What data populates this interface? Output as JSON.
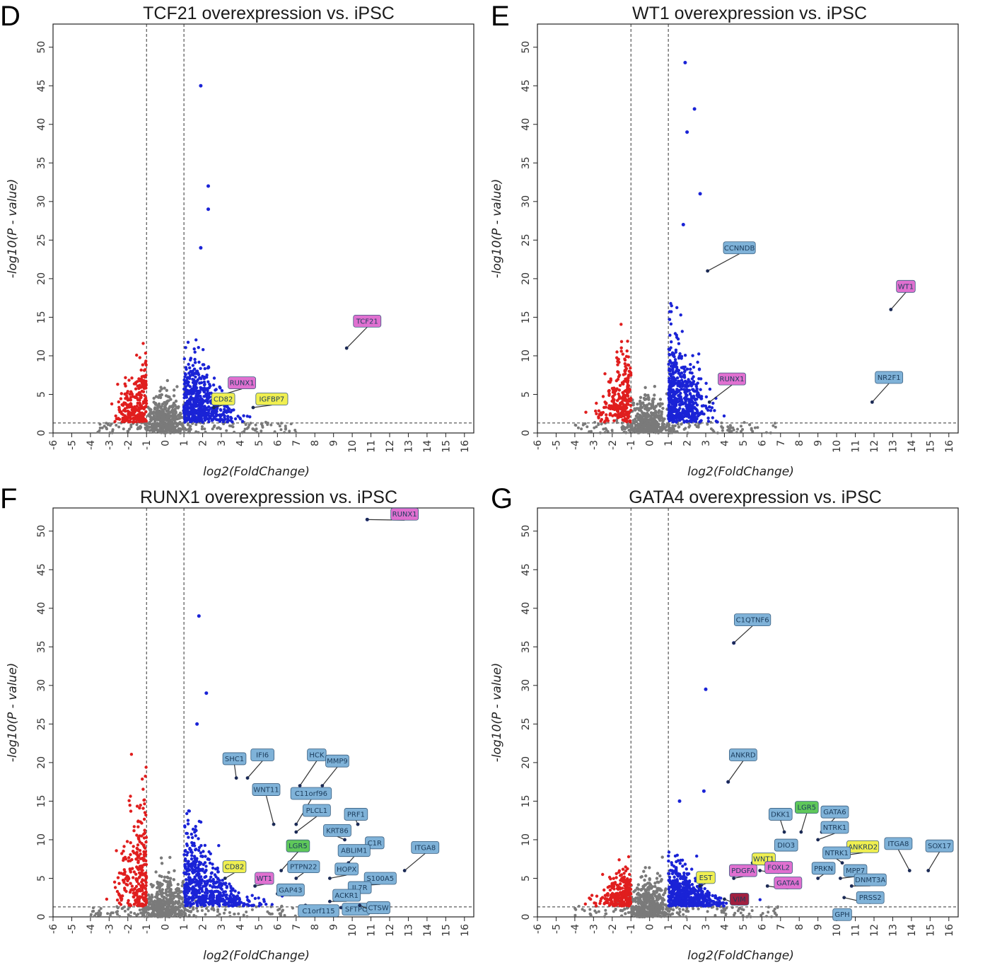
{
  "colors": {
    "up": "#1a23d6",
    "down": "#e01e1e",
    "ns": "#7a7a7a",
    "label_blue": "#7fb2d8",
    "label_pink": "#e070d0",
    "label_yellow": "#f0ef50",
    "label_green": "#5fc85a",
    "label_dark": "#a02040"
  },
  "chart_data": [
    {
      "type": "scatter",
      "letter": "D",
      "title": "TCF21 overexpression vs. iPSC",
      "xlabel": "log2(FoldChange)",
      "ylabel": "-log10(P - value)",
      "xlim": [
        -6,
        16.5
      ],
      "ylim": [
        0,
        53
      ],
      "xticks": [
        -6,
        -5,
        -4,
        -3,
        -2,
        -1,
        0,
        1,
        2,
        3,
        4,
        5,
        6,
        7,
        8,
        9,
        10,
        11,
        12,
        13,
        14,
        15,
        16
      ],
      "yticks": [
        0,
        5,
        10,
        15,
        20,
        25,
        30,
        35,
        40,
        45,
        50
      ],
      "fc_threshold": [
        -1,
        1
      ],
      "p_threshold": 1.3,
      "down_peak": 11,
      "up_peak": 14,
      "up_spread": 1.2,
      "extra_points": [
        [
          1.9,
          45
        ],
        [
          2.3,
          32
        ],
        [
          2.3,
          29
        ],
        [
          1.9,
          24
        ]
      ],
      "labels": [
        {
          "gene": "TCF21",
          "x": 9.7,
          "y": 11,
          "color": "pink",
          "lx": 10.8,
          "ly": 14.5
        },
        {
          "gene": "RUNX1",
          "x": 3.1,
          "y": 5,
          "color": "pink",
          "lx": 4.1,
          "ly": 6.5
        },
        {
          "gene": "CD82",
          "x": 2.6,
          "y": 3.3,
          "color": "yellow",
          "lx": 3.1,
          "ly": 4.4
        },
        {
          "gene": "IGFBP7",
          "x": 4.7,
          "y": 3.3,
          "color": "yellow",
          "lx": 5.7,
          "ly": 4.4
        }
      ]
    },
    {
      "type": "scatter",
      "letter": "E",
      "title": "WT1 overexpression vs. iPSC",
      "xlabel": "log2(FoldChange)",
      "ylabel": "-log10(P - value)",
      "xlim": [
        -6,
        16.5
      ],
      "ylim": [
        0,
        53
      ],
      "xticks": [
        -6,
        -5,
        -4,
        -3,
        -2,
        -1,
        0,
        1,
        2,
        3,
        4,
        5,
        6,
        7,
        8,
        9,
        10,
        11,
        12,
        13,
        14,
        15,
        16
      ],
      "yticks": [
        0,
        5,
        10,
        15,
        20,
        25,
        30,
        35,
        40,
        45,
        50
      ],
      "fc_threshold": [
        -1,
        1
      ],
      "p_threshold": 1.3,
      "down_peak": 14,
      "up_peak": 18,
      "up_spread": 1.0,
      "extra_points": [
        [
          1.9,
          48
        ],
        [
          2.4,
          42
        ],
        [
          2.0,
          39
        ],
        [
          2.7,
          31
        ],
        [
          1.8,
          27
        ]
      ],
      "labels": [
        {
          "gene": "CCNNDB",
          "x": 3.1,
          "y": 21,
          "color": "blue",
          "lx": 4.8,
          "ly": 24
        },
        {
          "gene": "WT1",
          "x": 12.9,
          "y": 16,
          "color": "pink",
          "lx": 13.7,
          "ly": 19
        },
        {
          "gene": "RUNX1",
          "x": 3.2,
          "y": 4,
          "color": "pink",
          "lx": 4.4,
          "ly": 7
        },
        {
          "gene": "NR2F1",
          "x": 11.9,
          "y": 4,
          "color": "blue",
          "lx": 12.8,
          "ly": 7.2
        }
      ]
    },
    {
      "type": "scatter",
      "letter": "F",
      "title": "RUNX1 overexpression vs. iPSC",
      "xlabel": "log2(FoldChange)",
      "ylabel": "-log10(P - value)",
      "xlim": [
        -6,
        16.5
      ],
      "ylim": [
        0,
        53
      ],
      "xticks": [
        -6,
        -5,
        -4,
        -3,
        -2,
        -1,
        0,
        1,
        2,
        3,
        4,
        5,
        6,
        7,
        8,
        9,
        10,
        11,
        12,
        13,
        14,
        15,
        16
      ],
      "yticks": [
        0,
        5,
        10,
        15,
        20,
        25,
        30,
        35,
        40,
        45,
        50
      ],
      "fc_threshold": [
        -1,
        1
      ],
      "p_threshold": 1.3,
      "down_peak": 20,
      "up_peak": 16,
      "up_spread": 1.6,
      "extra_points": [
        [
          10.8,
          51.5
        ],
        [
          1.8,
          39
        ],
        [
          2.2,
          29
        ],
        [
          1.7,
          25
        ]
      ],
      "labels": [
        {
          "gene": "RUNX1",
          "x": 10.8,
          "y": 51.5,
          "color": "pink",
          "lx": 12.8,
          "ly": 52.2
        },
        {
          "gene": "SHC1",
          "x": 3.8,
          "y": 18,
          "color": "blue",
          "lx": 3.7,
          "ly": 20.5
        },
        {
          "gene": "IFI6",
          "x": 4.4,
          "y": 18,
          "color": "blue",
          "lx": 5.2,
          "ly": 21
        },
        {
          "gene": "HCK",
          "x": 7.2,
          "y": 17,
          "color": "blue",
          "lx": 8.1,
          "ly": 21
        },
        {
          "gene": "MMP9",
          "x": 8.4,
          "y": 17,
          "color": "blue",
          "lx": 9.2,
          "ly": 20.2
        },
        {
          "gene": "WNT11",
          "x": 5.8,
          "y": 12,
          "color": "blue",
          "lx": 5.4,
          "ly": 16.5
        },
        {
          "gene": "C11orf96",
          "x": 7.0,
          "y": 12,
          "color": "blue",
          "lx": 7.8,
          "ly": 16
        },
        {
          "gene": "PLCL1",
          "x": 7.0,
          "y": 11,
          "color": "blue",
          "lx": 8.1,
          "ly": 13.8
        },
        {
          "gene": "PRF1",
          "x": 10.3,
          "y": 12,
          "color": "blue",
          "lx": 10.2,
          "ly": 13.3
        },
        {
          "gene": "KRT86",
          "x": 9.6,
          "y": 10,
          "color": "blue",
          "lx": 9.2,
          "ly": 11.2
        },
        {
          "gene": "C1R",
          "x": 11.1,
          "y": 9,
          "color": "blue",
          "lx": 11.2,
          "ly": 9.6
        },
        {
          "gene": "ITGA8",
          "x": 12.8,
          "y": 6,
          "color": "blue",
          "lx": 13.9,
          "ly": 9
        },
        {
          "gene": "LGR5",
          "x": 6.2,
          "y": 6,
          "color": "green",
          "lx": 7.1,
          "ly": 9.2
        },
        {
          "gene": "ABLIM1",
          "x": 9.8,
          "y": 7,
          "color": "blue",
          "lx": 10.1,
          "ly": 8.6
        },
        {
          "gene": "CD82",
          "x": 3.2,
          "y": 5,
          "color": "yellow",
          "lx": 3.7,
          "ly": 6.5
        },
        {
          "gene": "PTPN22",
          "x": 7.0,
          "y": 5,
          "color": "blue",
          "lx": 7.4,
          "ly": 6.5
        },
        {
          "gene": "HOPX",
          "x": 8.8,
          "y": 5,
          "color": "blue",
          "lx": 9.7,
          "ly": 6.2
        },
        {
          "gene": "S100A5",
          "x": 10.0,
          "y": 4,
          "color": "blue",
          "lx": 11.5,
          "ly": 5
        },
        {
          "gene": "WT1",
          "x": 4.8,
          "y": 4,
          "color": "pink",
          "lx": 5.3,
          "ly": 5
        },
        {
          "gene": "GAP43",
          "x": 6.0,
          "y": 3,
          "color": "blue",
          "lx": 6.7,
          "ly": 3.5
        },
        {
          "gene": "IL7R",
          "x": 9.5,
          "y": 3,
          "color": "blue",
          "lx": 10.4,
          "ly": 3.8
        },
        {
          "gene": "ACKR1",
          "x": 8.8,
          "y": 2,
          "color": "blue",
          "lx": 9.7,
          "ly": 2.8
        },
        {
          "gene": "C1orf115",
          "x": 7.5,
          "y": 1.5,
          "color": "blue",
          "lx": 8.2,
          "ly": 0.8
        },
        {
          "gene": "SFTPC",
          "x": 9.4,
          "y": 1.2,
          "color": "blue",
          "lx": 10.2,
          "ly": 1
        },
        {
          "gene": "CTSW",
          "x": 10.4,
          "y": 1.5,
          "color": "blue",
          "lx": 11.4,
          "ly": 1.2
        }
      ]
    },
    {
      "type": "scatter",
      "letter": "G",
      "title": "GATA4 overexpression vs. iPSC",
      "xlabel": "log2(FoldChange)",
      "ylabel": "-log10(P - value)",
      "xlim": [
        -6,
        16.5
      ],
      "ylim": [
        0,
        53
      ],
      "xticks": [
        -6,
        -5,
        -4,
        -3,
        -2,
        -1,
        0,
        1,
        2,
        3,
        4,
        5,
        6,
        7,
        8,
        9,
        10,
        11,
        12,
        13,
        14,
        15,
        16
      ],
      "yticks": [
        0,
        5,
        10,
        15,
        20,
        25,
        30,
        35,
        40,
        45,
        50
      ],
      "fc_threshold": [
        -1,
        1
      ],
      "p_threshold": 1.3,
      "down_peak": 8,
      "up_peak": 9,
      "up_spread": 1.3,
      "extra_points": [
        [
          4.5,
          35.5
        ],
        [
          3.0,
          29.5
        ],
        [
          4.2,
          17.5
        ],
        [
          2.9,
          16.3
        ],
        [
          1.6,
          15
        ]
      ],
      "labels": [
        {
          "gene": "C1QTNF6",
          "x": 4.5,
          "y": 35.5,
          "color": "blue",
          "lx": 5.5,
          "ly": 38.5
        },
        {
          "gene": "ANKRD",
          "x": 4.2,
          "y": 17.5,
          "color": "blue",
          "lx": 5.0,
          "ly": 21
        },
        {
          "gene": "DKK1",
          "x": 7.2,
          "y": 11,
          "color": "blue",
          "lx": 7.0,
          "ly": 13.3
        },
        {
          "gene": "LGR5",
          "x": 8.1,
          "y": 11,
          "color": "green",
          "lx": 8.4,
          "ly": 14.2
        },
        {
          "gene": "GATA6",
          "x": 9.2,
          "y": 11,
          "color": "blue",
          "lx": 9.9,
          "ly": 13.6
        },
        {
          "gene": "NTRK1",
          "x": 9.0,
          "y": 10,
          "color": "blue",
          "lx": 9.9,
          "ly": 11.6
        },
        {
          "gene": "DIO3",
          "x": 7.5,
          "y": 9,
          "color": "blue",
          "lx": 7.3,
          "ly": 9.3
        },
        {
          "gene": "ANKRD2",
          "x": 10.5,
          "y": 8,
          "color": "yellow",
          "lx": 11.4,
          "ly": 9.1
        },
        {
          "gene": "ITGA8",
          "x": 13.9,
          "y": 6,
          "color": "blue",
          "lx": 13.3,
          "ly": 9.5
        },
        {
          "gene": "SOX17",
          "x": 14.9,
          "y": 6,
          "color": "blue",
          "lx": 15.5,
          "ly": 9.2
        },
        {
          "gene": "NTRK1",
          "x": 10.3,
          "y": 7,
          "color": "blue",
          "lx": 10.0,
          "ly": 8.3
        },
        {
          "gene": "WNT1",
          "x": 5.5,
          "y": 7,
          "color": "yellow",
          "lx": 6.1,
          "ly": 7.5
        },
        {
          "gene": "FOXL2",
          "x": 5.9,
          "y": 6,
          "color": "pink",
          "lx": 6.9,
          "ly": 6.4
        },
        {
          "gene": "PDGFA",
          "x": 4.5,
          "y": 5,
          "color": "pink",
          "lx": 5.0,
          "ly": 6
        },
        {
          "gene": "PRKN",
          "x": 9.0,
          "y": 5,
          "color": "blue",
          "lx": 9.3,
          "ly": 6.3
        },
        {
          "gene": "MPP7",
          "x": 10.2,
          "y": 5,
          "color": "blue",
          "lx": 11.0,
          "ly": 6
        },
        {
          "gene": "DNMT3A",
          "x": 10.8,
          "y": 4,
          "color": "blue",
          "lx": 11.8,
          "ly": 4.8
        },
        {
          "gene": "GATA4",
          "x": 6.3,
          "y": 4,
          "color": "pink",
          "lx": 7.4,
          "ly": 4.4
        },
        {
          "gene": "EST",
          "x": 2.7,
          "y": 4,
          "color": "yellow",
          "lx": 3.0,
          "ly": 5.1
        },
        {
          "gene": "PRSS2",
          "x": 10.4,
          "y": 2.5,
          "color": "blue",
          "lx": 11.8,
          "ly": 2.5
        },
        {
          "gene": "VIM",
          "x": 4.0,
          "y": 2.3,
          "color": "dark",
          "lx": 4.8,
          "ly": 2.3
        },
        {
          "gene": "GPH",
          "x": 10.0,
          "y": 0.8,
          "color": "blue",
          "lx": 10.3,
          "ly": 0.3
        }
      ]
    }
  ]
}
